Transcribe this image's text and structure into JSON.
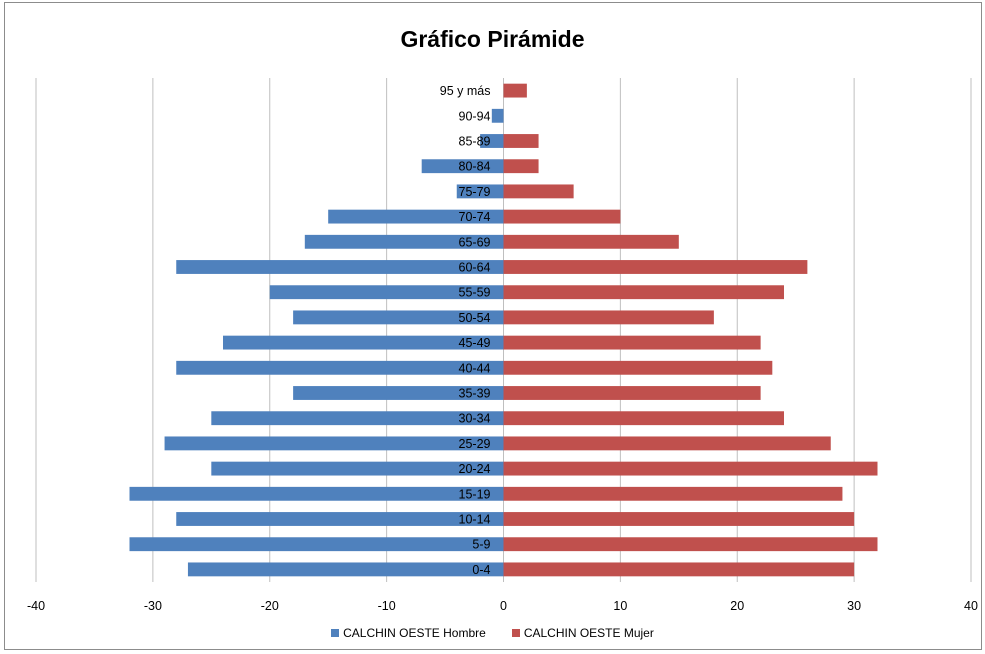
{
  "chart_data": {
    "type": "bar",
    "orientation": "horizontal",
    "title": "Gráfico Pirámide",
    "categories": [
      "0-4",
      "5-9",
      "10-14",
      "15-19",
      "20-24",
      "25-29",
      "30-34",
      "35-39",
      "40-44",
      "45-49",
      "50-54",
      "55-59",
      "60-64",
      "65-69",
      "70-74",
      "75-79",
      "80-84",
      "85-89",
      "90-94",
      "95 y más"
    ],
    "series": [
      {
        "name": "CALCHIN OESTE Hombre",
        "color": "#4f81bd",
        "values": [
          -27,
          -32,
          -28,
          -32,
          -25,
          -29,
          -25,
          -18,
          -28,
          -24,
          -18,
          -20,
          -28,
          -17,
          -15,
          -4,
          -7,
          -2,
          -1,
          0
        ]
      },
      {
        "name": "CALCHIN OESTE Mujer",
        "color": "#c0504d",
        "values": [
          30,
          32,
          30,
          29,
          32,
          28,
          24,
          22,
          23,
          22,
          18,
          24,
          26,
          15,
          10,
          6,
          3,
          3,
          0,
          2
        ]
      }
    ],
    "xlim": [
      -40,
      40
    ],
    "xticks": [
      -40,
      -30,
      -20,
      -10,
      0,
      10,
      20,
      30,
      40
    ],
    "xlabel": "",
    "ylabel": "",
    "grid": "vertical",
    "legend": "bottom"
  }
}
